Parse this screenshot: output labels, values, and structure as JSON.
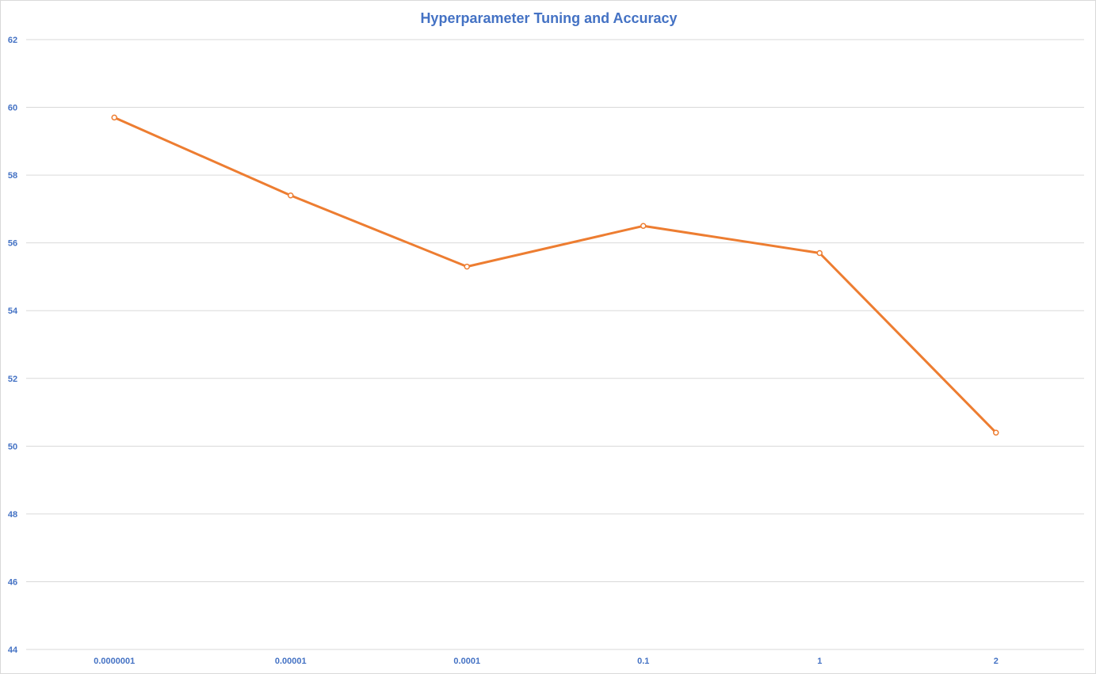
{
  "chart_data": {
    "type": "line",
    "title": "Hyperparameter Tuning and Accuracy",
    "xlabel": "",
    "ylabel": "",
    "categories": [
      "0.0000001",
      "0.00001",
      "0.0001",
      "0.1",
      "1",
      "2"
    ],
    "series": [
      {
        "values": [
          59.7,
          57.4,
          55.3,
          56.5,
          55.7,
          50.4
        ],
        "color": "#ed7d31"
      }
    ],
    "ylim": [
      44,
      62
    ],
    "yticks": [
      44,
      46,
      48,
      50,
      52,
      54,
      56,
      58,
      60,
      62
    ],
    "grid": true,
    "legend": "none",
    "colors": {
      "title": "#4472c4",
      "tick_labels": "#4472c4",
      "grid": "#d9d9d9"
    }
  }
}
